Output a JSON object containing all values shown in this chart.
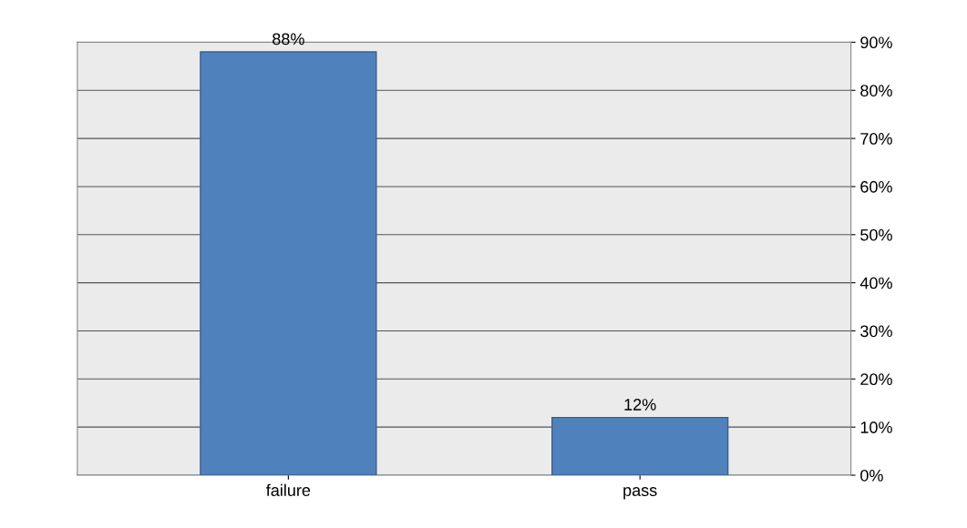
{
  "chart_data": {
    "type": "bar",
    "categories": [
      "failure",
      "pass"
    ],
    "values": [
      88,
      12
    ],
    "value_labels": [
      "88%",
      "12%"
    ],
    "color": "#4f81bd",
    "ylim": [
      0,
      90
    ],
    "yticks": [
      {
        "value": 0,
        "label": "0%"
      },
      {
        "value": 10,
        "label": "10%"
      },
      {
        "value": 20,
        "label": "20%"
      },
      {
        "value": 30,
        "label": "30%"
      },
      {
        "value": 40,
        "label": "40%"
      },
      {
        "value": 50,
        "label": "50%"
      },
      {
        "value": 60,
        "label": "60%"
      },
      {
        "value": 70,
        "label": "70%"
      },
      {
        "value": 80,
        "label": "80%"
      },
      {
        "value": 90,
        "label": "90%"
      }
    ],
    "grid": "y"
  }
}
